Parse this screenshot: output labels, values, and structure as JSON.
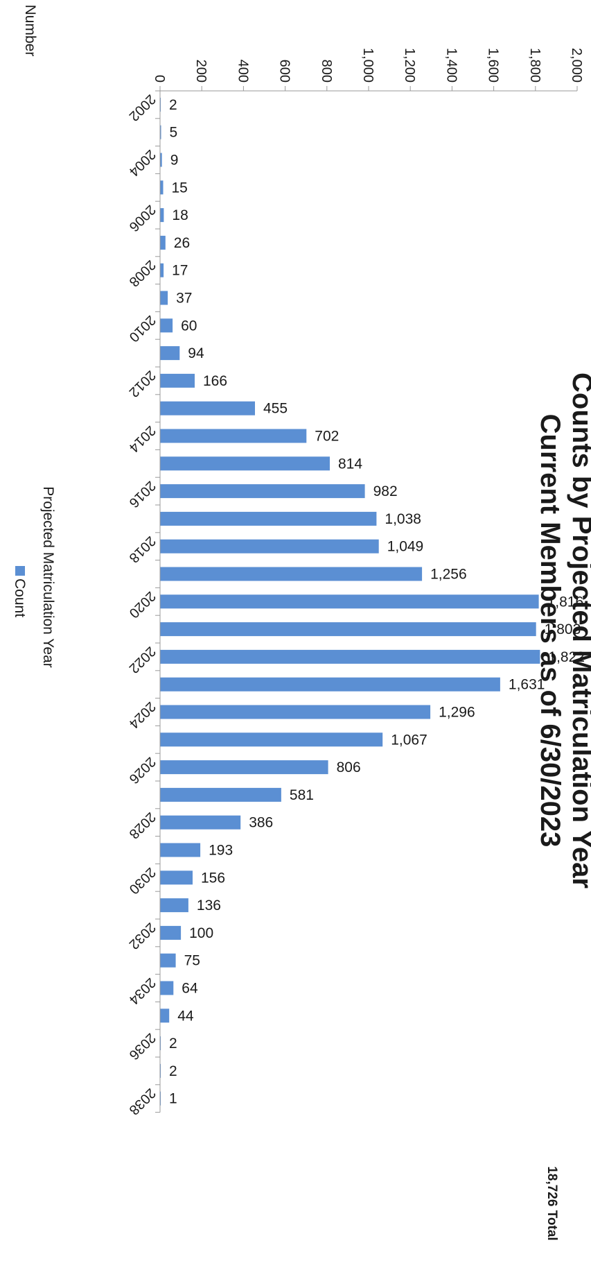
{
  "chart_data": {
    "type": "bar",
    "title": "Counts by Projected Matriculation Year",
    "subtitle": "Current Members as of 6/30/2023",
    "total_label": "18,726 Total",
    "ylabel": "Number",
    "xlabel": "Projected Matriculation Year",
    "ylim": [
      0,
      2000
    ],
    "yticks": [
      0,
      200,
      400,
      600,
      800,
      1000,
      1200,
      1400,
      1600,
      1800,
      2000
    ],
    "ytick_labels": [
      "0",
      "200",
      "400",
      "600",
      "800",
      "1,000",
      "1,200",
      "1,400",
      "1,600",
      "1,800",
      "2,000"
    ],
    "categories": [
      2002,
      2003,
      2004,
      2005,
      2006,
      2007,
      2008,
      2009,
      2010,
      2011,
      2012,
      2013,
      2014,
      2015,
      2016,
      2017,
      2018,
      2019,
      2020,
      2021,
      2022,
      2023,
      2024,
      2025,
      2026,
      2027,
      2028,
      2029,
      2030,
      2031,
      2032,
      2033,
      2034,
      2035,
      2036,
      2037,
      2038
    ],
    "xtick_labels": [
      "2002",
      "2004",
      "2006",
      "2008",
      "2010",
      "2012",
      "2014",
      "2016",
      "2018",
      "2020",
      "2022",
      "2024",
      "2026",
      "2028",
      "2030",
      "2032",
      "2034",
      "2036",
      "2038"
    ],
    "series": [
      {
        "name": "Count",
        "color": "#5b8fd3",
        "values": [
          2,
          5,
          9,
          15,
          18,
          26,
          17,
          37,
          60,
          94,
          166,
          455,
          702,
          814,
          982,
          1038,
          1049,
          1256,
          1816,
          1803,
          1822,
          1631,
          1296,
          1067,
          806,
          581,
          386,
          193,
          156,
          136,
          100,
          75,
          64,
          44,
          2,
          2,
          1
        ],
        "data_labels": [
          "2",
          "5",
          "9",
          "15",
          "18",
          "26",
          "17",
          "37",
          "60",
          "94",
          "166",
          "455",
          "702",
          "814",
          "982",
          "1,038",
          "1,049",
          "1,256",
          "1,816",
          "1,803",
          "1,822",
          "1,631",
          "1,296",
          "1,067",
          "806",
          "581",
          "386",
          "193",
          "156",
          "136",
          "100",
          "75",
          "64",
          "44",
          "2",
          "2",
          "1"
        ]
      }
    ],
    "legend": [
      "Count"
    ],
    "legend_position": "bottom",
    "orientation": "rotated-90-clockwise",
    "grid": false
  }
}
